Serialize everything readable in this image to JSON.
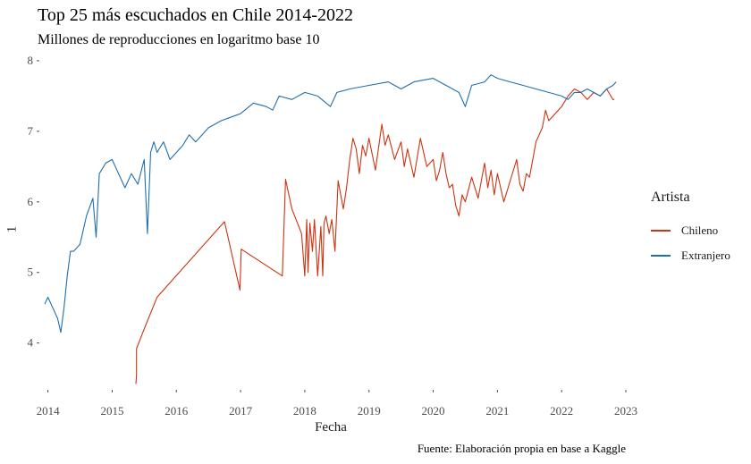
{
  "chart_data": {
    "type": "line",
    "title": "Top 25 más escuchados en Chile 2014-2022",
    "subtitle": "Millones de reproducciones en logaritmo base 10",
    "caption": "Fuente: Elaboración propia en base a Kaggle",
    "xlabel": "Fecha",
    "ylabel": "1",
    "xlim": [
      2013.88,
      2023.0
    ],
    "ylim": [
      3.35,
      8.1
    ],
    "x_ticks": [
      2014,
      2015,
      2016,
      2017,
      2018,
      2019,
      2020,
      2021,
      2022,
      2023
    ],
    "y_ticks": [
      4,
      5,
      6,
      7,
      8
    ],
    "grid": false,
    "legend": {
      "title": "Artista",
      "position": "right"
    },
    "series": [
      {
        "name": "Chileno",
        "color": "#cc3311",
        "x": [
          2015.37,
          2015.38,
          2015.38,
          2015.5,
          2015.7,
          2016.75,
          2016.99,
          2017.01,
          2017.65,
          2017.7,
          2017.8,
          2017.95,
          2018.0,
          2018.03,
          2018.05,
          2018.08,
          2018.12,
          2018.15,
          2018.2,
          2018.25,
          2018.28,
          2018.3,
          2018.33,
          2018.38,
          2018.42,
          2018.47,
          2018.52,
          2018.6,
          2018.65,
          2018.7,
          2018.75,
          2018.8,
          2018.85,
          2018.9,
          2018.95,
          2019.0,
          2019.1,
          2019.2,
          2019.25,
          2019.3,
          2019.4,
          2019.5,
          2019.55,
          2019.6,
          2019.7,
          2019.8,
          2019.9,
          2020.0,
          2020.05,
          2020.1,
          2020.15,
          2020.2,
          2020.25,
          2020.3,
          2020.35,
          2020.4,
          2020.45,
          2020.5,
          2020.6,
          2020.7,
          2020.8,
          2020.85,
          2020.9,
          2020.95,
          2021.0,
          2021.1,
          2021.2,
          2021.3,
          2021.35,
          2021.4,
          2021.45,
          2021.5,
          2021.6,
          2021.7,
          2021.75,
          2021.8,
          2021.9,
          2022.0,
          2022.1,
          2022.2,
          2022.3,
          2022.4,
          2022.5,
          2022.6,
          2022.7,
          2022.8,
          2022.82
        ],
        "values": [
          3.42,
          3.55,
          3.92,
          4.2,
          4.65,
          5.72,
          4.75,
          5.33,
          4.95,
          6.32,
          5.9,
          5.55,
          4.95,
          5.75,
          5.0,
          5.7,
          5.3,
          5.75,
          4.95,
          5.65,
          4.95,
          5.7,
          5.8,
          5.55,
          5.75,
          5.3,
          6.3,
          5.9,
          6.2,
          6.6,
          6.9,
          6.75,
          6.4,
          6.8,
          6.65,
          6.9,
          6.45,
          7.1,
          6.8,
          6.95,
          6.6,
          6.85,
          6.5,
          6.75,
          6.35,
          6.9,
          6.5,
          6.6,
          6.3,
          6.45,
          6.7,
          6.4,
          6.2,
          6.25,
          5.95,
          5.8,
          6.1,
          6.0,
          6.35,
          6.05,
          6.55,
          6.2,
          6.45,
          6.1,
          6.4,
          6.0,
          6.3,
          6.6,
          6.25,
          6.15,
          6.4,
          6.35,
          6.85,
          7.05,
          7.3,
          7.15,
          7.25,
          7.35,
          7.5,
          7.6,
          7.55,
          7.45,
          7.55,
          7.5,
          7.6,
          7.45,
          7.45
        ]
      },
      {
        "name": "Extranjero",
        "color": "#1f6fad",
        "x": [
          2013.95,
          2014.0,
          2014.05,
          2014.1,
          2014.15,
          2014.2,
          2014.25,
          2014.3,
          2014.35,
          2014.4,
          2014.5,
          2014.6,
          2014.7,
          2014.75,
          2014.8,
          2014.9,
          2015.0,
          2015.1,
          2015.2,
          2015.3,
          2015.4,
          2015.5,
          2015.55,
          2015.6,
          2015.65,
          2015.7,
          2015.8,
          2015.9,
          2016.0,
          2016.1,
          2016.2,
          2016.3,
          2016.5,
          2016.7,
          2017.0,
          2017.2,
          2017.4,
          2017.5,
          2017.6,
          2017.8,
          2018.0,
          2018.2,
          2018.4,
          2018.5,
          2018.7,
          2019.0,
          2019.3,
          2019.5,
          2019.7,
          2020.0,
          2020.2,
          2020.4,
          2020.5,
          2020.6,
          2020.8,
          2020.9,
          2021.0,
          2021.2,
          2021.4,
          2021.6,
          2021.8,
          2022.0,
          2022.1,
          2022.2,
          2022.3,
          2022.4,
          2022.5,
          2022.6,
          2022.7,
          2022.8,
          2022.85
        ],
        "values": [
          4.55,
          4.65,
          4.55,
          4.45,
          4.35,
          4.15,
          4.5,
          4.95,
          5.3,
          5.3,
          5.4,
          5.8,
          6.05,
          5.5,
          6.4,
          6.55,
          6.6,
          6.4,
          6.2,
          6.4,
          6.25,
          6.6,
          5.55,
          6.7,
          6.85,
          6.7,
          6.85,
          6.6,
          6.7,
          6.8,
          6.95,
          6.85,
          7.05,
          7.15,
          7.25,
          7.4,
          7.35,
          7.3,
          7.5,
          7.45,
          7.55,
          7.5,
          7.35,
          7.55,
          7.6,
          7.65,
          7.7,
          7.6,
          7.7,
          7.75,
          7.65,
          7.55,
          7.35,
          7.65,
          7.7,
          7.8,
          7.75,
          7.7,
          7.65,
          7.6,
          7.55,
          7.5,
          7.45,
          7.55,
          7.55,
          7.6,
          7.55,
          7.5,
          7.6,
          7.65,
          7.7
        ]
      }
    ]
  }
}
